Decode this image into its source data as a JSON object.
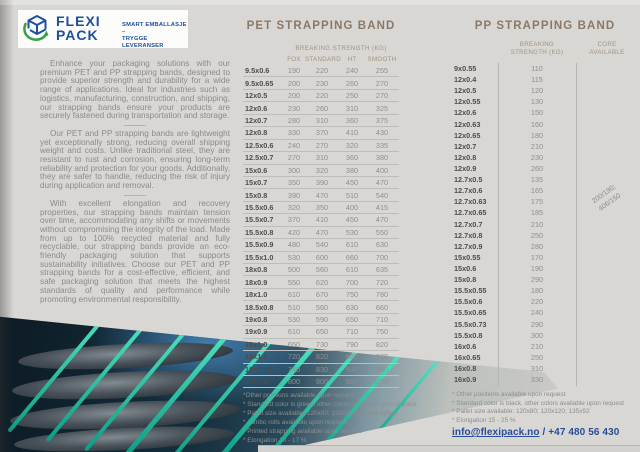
{
  "brand": {
    "name_line1": "FLEXI",
    "name_line2": "PACK",
    "tagline_line1": "SMART EMBALLASJE –",
    "tagline_line2": "TRYGGE LEVERANSER"
  },
  "intro": {
    "paragraphs": [
      "Enhance your packaging solutions with our premium PET and PP strapping bands, designed to provide superior strength and durability for a wide range of applications. Ideal for industries such as logistics, manufacturing, construction, and shipping, our strapping bands ensure your products are securely fastened during transportation and storage.",
      "Our PET and PP strapping bands are lightweight yet exceptionally strong, reducing overall shipping weight and costs. Unlike traditional steel, they are resistant to rust and corrosion, ensuring long-term reliability and protection for your goods. Additionally, they are safer to handle, reducing the risk of injury during application and removal.",
      "With excellent elongation and recovery properties, our strapping bands maintain tension over time, accommodating any shifts or movements without compromising the integrity of the load. Made from up to 100% recycled material and fully recyclable, our strapping bands provide an eco-friendly packaging solution that supports sustainability initiatives. Choose our PET and PP strapping bands for a cost-effective, efficient, and safe packaging solution that meets the highest standards of quality and performance while promoting environmental responsibility."
    ]
  },
  "pet": {
    "title": "PET STRAPPING BAND",
    "strength_header": "BREAKING STRENGTH (KG)",
    "columns": [
      "FOX",
      "STANDARD",
      "HT",
      "SMOOTH"
    ],
    "rows": [
      [
        "9.5x0.6",
        190,
        220,
        240,
        255
      ],
      [
        "9.5x0.65",
        200,
        230,
        260,
        270
      ],
      [
        "12x0.5",
        200,
        220,
        250,
        270
      ],
      [
        "12x0.6",
        230,
        260,
        310,
        325
      ],
      [
        "12x0.7",
        280,
        310,
        360,
        375
      ],
      [
        "12x0.8",
        330,
        370,
        410,
        430
      ],
      [
        "12.5x0.6",
        240,
        270,
        320,
        335
      ],
      [
        "12.5x0.7",
        270,
        310,
        360,
        380
      ],
      [
        "15x0.6",
        300,
        320,
        380,
        400
      ],
      [
        "15x0.7",
        350,
        390,
        450,
        470
      ],
      [
        "15x0.8",
        390,
        470,
        510,
        540
      ],
      [
        "15.5x0.6",
        320,
        350,
        400,
        415
      ],
      [
        "15.5x0.7",
        370,
        410,
        450,
        470
      ],
      [
        "15.5x0.8",
        420,
        470,
        530,
        550
      ],
      [
        "15.5x0.9",
        480,
        540,
        610,
        630
      ],
      [
        "15.5x1.0",
        530,
        600,
        660,
        700
      ],
      [
        "18x0.8",
        500,
        560,
        610,
        635
      ],
      [
        "18x0.9",
        550,
        620,
        700,
        720
      ],
      [
        "18x1.0",
        610,
        670,
        750,
        780
      ],
      [
        "18.5x0.8",
        510,
        560,
        630,
        660
      ],
      [
        "19x0.8",
        530,
        590,
        650,
        710
      ],
      [
        "19x0.9",
        610,
        650,
        710,
        750
      ],
      [
        "19x1.0",
        650,
        730,
        790,
        820
      ],
      [
        "19x1.1",
        720,
        820,
        880,
        920
      ],
      [
        "19x1.15",
        740,
        830,
        930,
        960
      ],
      [
        "19x1.27",
        800,
        900,
        980,
        1000
      ]
    ],
    "footnotes": [
      "*Other positions available upon request",
      "* Standard color is green, other colors available upon request",
      "* Pallet size available: 120x80; 120x120; duplex option",
      "* Jumbo rolls available upon request",
      "* Printed strapping available upon request",
      "* Elongation 10 - 17 %"
    ]
  },
  "pp": {
    "title": "PP STRAPPING BAND",
    "strength_header_line1": "BREAKING",
    "strength_header_line2": "STRENGTH (KG)",
    "core_header_line1": "CORE",
    "core_header_line2": "AVAILABLE",
    "core_available_line1": "200/190;",
    "core_available_line2": "406/150",
    "rows": [
      [
        "9x0.55",
        110
      ],
      [
        "12x0.4",
        115
      ],
      [
        "12x0.5",
        120
      ],
      [
        "12x0.55",
        130
      ],
      [
        "12x0.6",
        150
      ],
      [
        "12x0.63",
        160
      ],
      [
        "12x0.65",
        180
      ],
      [
        "12x0.7",
        210
      ],
      [
        "12x0.8",
        230
      ],
      [
        "12x0.9",
        260
      ],
      [
        "12.7x0.5",
        135
      ],
      [
        "12.7x0.6",
        165
      ],
      [
        "12.7x0.63",
        175
      ],
      [
        "12.7x0.65",
        185
      ],
      [
        "12.7x0.7",
        210
      ],
      [
        "12.7x0.8",
        250
      ],
      [
        "12.7x0.9",
        280
      ],
      [
        "15x0.55",
        170
      ],
      [
        "15x0.6",
        190
      ],
      [
        "15x0.8",
        290
      ],
      [
        "15.5x0.55",
        180
      ],
      [
        "15.5x0.6",
        220
      ],
      [
        "15.5x0.65",
        240
      ],
      [
        "15.5x0.73",
        290
      ],
      [
        "15.5x0.8",
        300
      ],
      [
        "16x0.6",
        210
      ],
      [
        "16x0.65",
        250
      ],
      [
        "16x0.8",
        310
      ],
      [
        "16x0.9",
        330
      ]
    ],
    "footnotes": [
      "* Other positions available upon request",
      "* Standard color is black, other colors available upon request",
      "* Pallet size available: 120x80; 120x120; 135x92",
      "* Elongation 15 - 25 %"
    ]
  },
  "contact": {
    "email": "info@flexipack.no",
    "separator": " / ",
    "phone": "+47 480 56 430"
  },
  "colors": {
    "accent_blue": "#1d4f9f",
    "accent_green": "#3ca04b",
    "heading_taupe": "#8b7968",
    "link_blue": "#2a4d97",
    "strap_teal": "#17b89a"
  }
}
